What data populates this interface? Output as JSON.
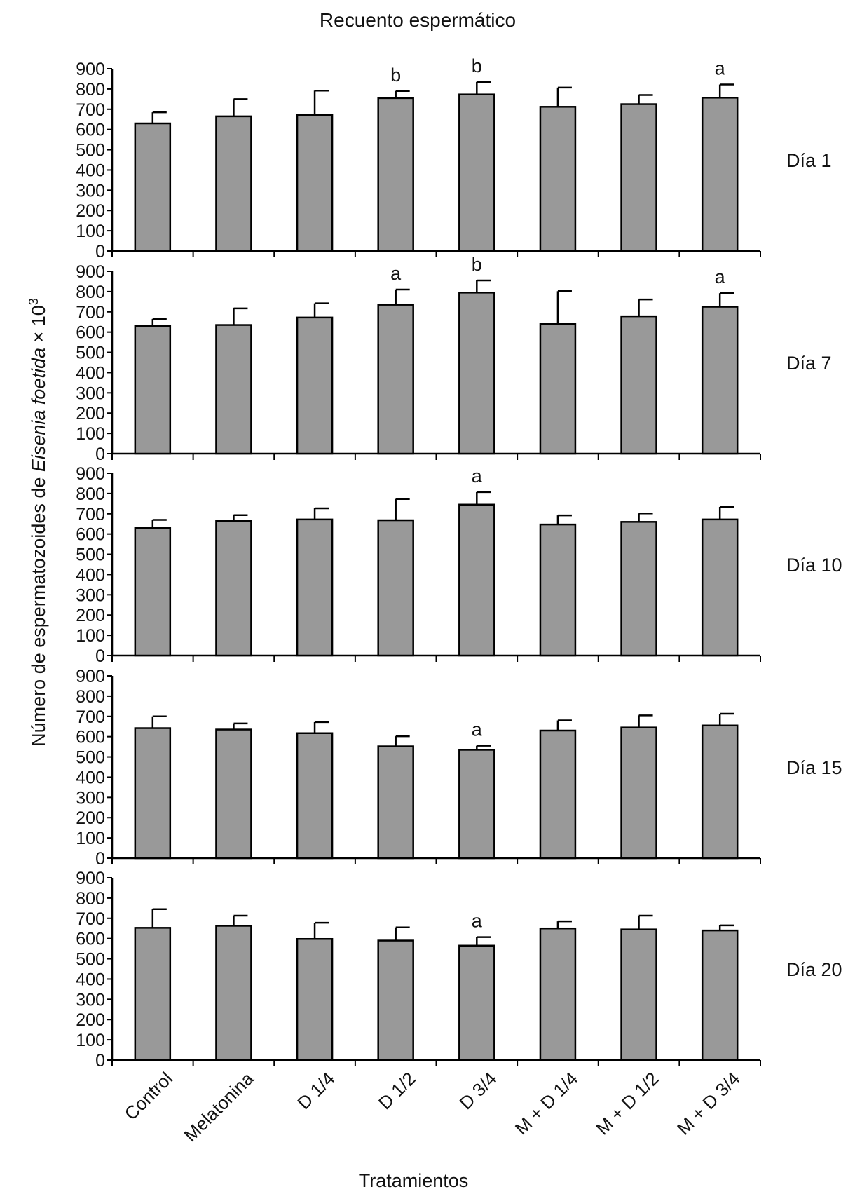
{
  "title": "Recuento espermático",
  "ylabel_main": "Número de espermatozoides de ",
  "ylabel_italic": "Eisenia foetida",
  "ylabel_suffix": " × 10",
  "ylabel_exp": "3",
  "xlabel": "Tratamientos",
  "chart_data": {
    "type": "bar",
    "categories": [
      "Control",
      "Melatonina",
      "D 1/4",
      "D 1/2",
      "D 3/4",
      "M + D 1/4",
      "M + D 1/2",
      "M + D 3/4"
    ],
    "ylim": [
      0,
      900
    ],
    "yticks": [
      0,
      100,
      200,
      300,
      400,
      500,
      600,
      700,
      800,
      900
    ],
    "bar_color": "#999999",
    "panels": [
      {
        "label": "Día 1",
        "values": [
          630,
          665,
          672,
          755,
          773,
          712,
          725,
          757
        ],
        "errors": [
          55,
          85,
          120,
          35,
          62,
          95,
          45,
          65
        ],
        "annotations": [
          "",
          "",
          "",
          "b",
          "b",
          "",
          "",
          "a"
        ]
      },
      {
        "label": "Día 7",
        "values": [
          630,
          635,
          672,
          735,
          795,
          640,
          678,
          725
        ],
        "errors": [
          35,
          82,
          70,
          75,
          60,
          162,
          83,
          67
        ],
        "annotations": [
          "",
          "",
          "",
          "a",
          "b",
          "",
          "",
          "a"
        ]
      },
      {
        "label": "Día 10",
        "values": [
          630,
          665,
          672,
          668,
          745,
          647,
          660,
          672
        ],
        "errors": [
          40,
          28,
          55,
          105,
          62,
          45,
          42,
          62
        ],
        "annotations": [
          "",
          "",
          "",
          "",
          "a",
          "",
          "",
          ""
        ]
      },
      {
        "label": "Día 15",
        "values": [
          642,
          635,
          617,
          552,
          535,
          630,
          645,
          655
        ],
        "errors": [
          58,
          30,
          55,
          50,
          20,
          50,
          60,
          58
        ],
        "annotations": [
          "",
          "",
          "",
          "",
          "a",
          "",
          "",
          ""
        ]
      },
      {
        "label": "Día 20",
        "values": [
          653,
          663,
          598,
          590,
          565,
          650,
          645,
          640
        ],
        "errors": [
          92,
          50,
          80,
          65,
          42,
          35,
          68,
          25
        ],
        "annotations": [
          "",
          "",
          "",
          "",
          "a",
          "",
          "",
          ""
        ]
      }
    ]
  }
}
